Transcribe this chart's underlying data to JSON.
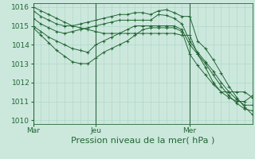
{
  "bg_color": "#cce8dd",
  "grid_minor_color": "#aad4c4",
  "grid_major_color": "#336644",
  "line_color": "#226633",
  "xlabel": "Pression niveau de la mer( hPa )",
  "xlabel_fontsize": 8,
  "ylim": [
    1009.8,
    1016.2
  ],
  "yticks": [
    1010,
    1011,
    1012,
    1013,
    1014,
    1015,
    1016
  ],
  "ytick_fontsize": 6.5,
  "xtick_labels": [
    "Mar",
    "Jeu",
    "Mer"
  ],
  "xtick_positions": [
    0.0,
    24.0,
    60.0
  ],
  "xlim": [
    0,
    84
  ],
  "total_hours": 84,
  "vline_hours": [
    0,
    24,
    60
  ],
  "series": [
    {
      "x": [
        0,
        3,
        6,
        9,
        12,
        15,
        18,
        21,
        24,
        27,
        30,
        33,
        36,
        39,
        42,
        45,
        48,
        51,
        54,
        57,
        60,
        63,
        66,
        69,
        72,
        75,
        78,
        81,
        84
      ],
      "y": [
        1015.8,
        1015.5,
        1015.3,
        1015.1,
        1015.0,
        1015.0,
        1015.1,
        1015.2,
        1015.3,
        1015.4,
        1015.5,
        1015.6,
        1015.6,
        1015.7,
        1015.7,
        1015.6,
        1015.8,
        1015.85,
        1015.7,
        1015.5,
        1015.5,
        1014.2,
        1013.8,
        1013.2,
        1012.5,
        1011.8,
        1011.2,
        1010.7,
        1010.3
      ]
    },
    {
      "x": [
        0,
        3,
        6,
        9,
        12,
        15,
        18,
        21,
        24,
        27,
        30,
        33,
        36,
        39,
        42,
        45,
        48,
        51,
        54,
        57,
        60,
        63,
        66,
        69,
        72,
        75,
        78,
        81,
        84
      ],
      "y": [
        1015.4,
        1015.1,
        1014.9,
        1014.7,
        1014.6,
        1014.7,
        1014.8,
        1014.9,
        1015.0,
        1015.1,
        1015.2,
        1015.3,
        1015.3,
        1015.3,
        1015.3,
        1015.3,
        1015.6,
        1015.55,
        1015.4,
        1015.1,
        1014.2,
        1013.6,
        1013.1,
        1012.6,
        1012.0,
        1011.5,
        1011.1,
        1010.8,
        1010.8
      ]
    },
    {
      "x": [
        0,
        3,
        6,
        9,
        12,
        15,
        18,
        21,
        24,
        27,
        30,
        33,
        36,
        39,
        42,
        45,
        48,
        51,
        54,
        57,
        60,
        63,
        66,
        69,
        72,
        75,
        78,
        81,
        84
      ],
      "y": [
        1015.0,
        1014.7,
        1014.4,
        1014.2,
        1014.0,
        1013.8,
        1013.7,
        1013.6,
        1014.0,
        1014.2,
        1014.4,
        1014.6,
        1014.8,
        1015.0,
        1015.0,
        1015.0,
        1015.0,
        1015.0,
        1015.0,
        1014.8,
        1014.0,
        1013.5,
        1013.0,
        1012.4,
        1011.8,
        1011.3,
        1010.9,
        1010.6,
        1010.5
      ]
    },
    {
      "x": [
        0,
        3,
        6,
        9,
        12,
        15,
        18,
        21,
        24,
        27,
        30,
        33,
        36,
        39,
        42,
        45,
        48,
        51,
        54,
        57,
        60,
        63,
        66,
        69,
        72,
        75,
        78,
        81,
        84
      ],
      "y": [
        1014.9,
        1014.5,
        1014.1,
        1013.7,
        1013.4,
        1013.1,
        1013.0,
        1013.0,
        1013.3,
        1013.6,
        1013.8,
        1014.0,
        1014.2,
        1014.5,
        1014.8,
        1014.9,
        1014.9,
        1014.9,
        1014.9,
        1014.7,
        1013.5,
        1012.9,
        1012.4,
        1011.9,
        1011.5,
        1011.2,
        1011.0,
        1011.0,
        1011.3
      ]
    },
    {
      "x": [
        0,
        3,
        6,
        9,
        12,
        15,
        18,
        21,
        24,
        27,
        30,
        33,
        36,
        39,
        42,
        45,
        48,
        51,
        54,
        57,
        60,
        63,
        66,
        69,
        72,
        75,
        78,
        81,
        84
      ],
      "y": [
        1016.0,
        1015.8,
        1015.6,
        1015.4,
        1015.2,
        1015.0,
        1014.9,
        1014.8,
        1014.7,
        1014.6,
        1014.6,
        1014.6,
        1014.6,
        1014.6,
        1014.6,
        1014.6,
        1014.6,
        1014.6,
        1014.6,
        1014.5,
        1014.5,
        1013.5,
        1012.8,
        1012.0,
        1011.5,
        1011.5,
        1011.5,
        1011.5,
        1011.2
      ]
    }
  ]
}
